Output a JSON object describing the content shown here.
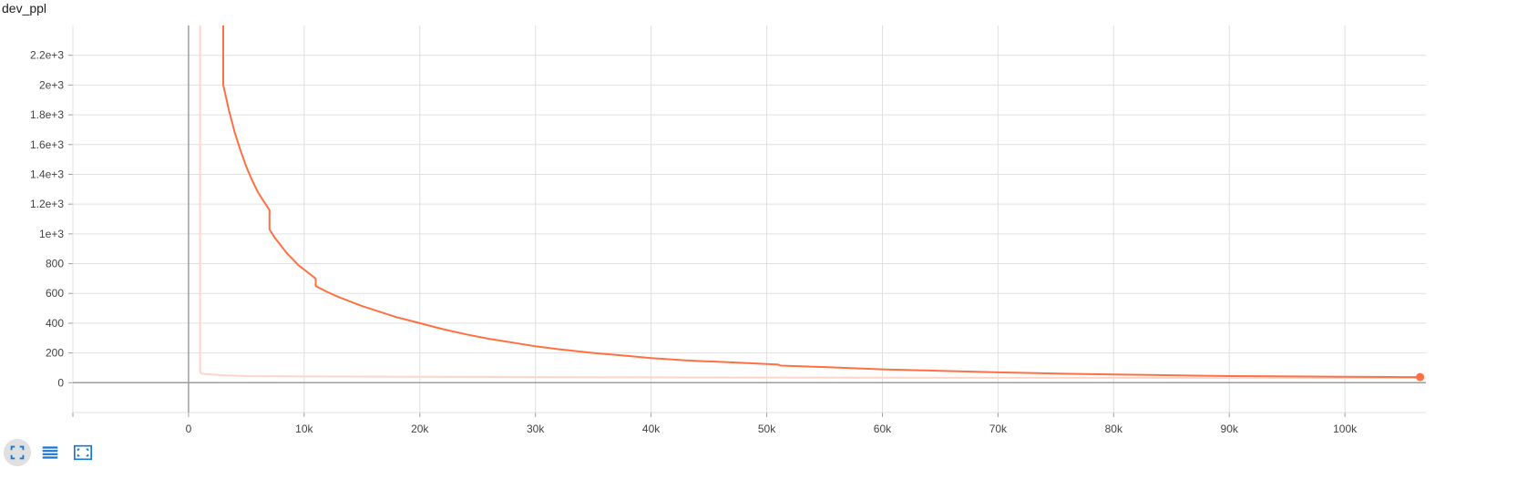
{
  "title": "dev_ppl",
  "toolbar": {
    "fullscreen_icon": "fullscreen-icon",
    "data_icon": "list-icon",
    "fit_icon": "fit-domain-icon"
  },
  "colors": {
    "main": "#ff7043",
    "ghost": "#ffd5c9",
    "grid": "#e0e0e0",
    "axis": "#9e9e9e",
    "tick_text": "#424242"
  },
  "chart_data": {
    "type": "line",
    "title": "dev_ppl",
    "xlabel": "",
    "ylabel": "",
    "xlim": [
      -10000,
      107000
    ],
    "ylim": [
      -200,
      2400
    ],
    "x_ticks": [
      0,
      10000,
      20000,
      30000,
      40000,
      50000,
      60000,
      70000,
      80000,
      90000,
      100000
    ],
    "x_tick_labels": [
      "0",
      "10k",
      "20k",
      "30k",
      "40k",
      "50k",
      "60k",
      "70k",
      "80k",
      "90k",
      "100k"
    ],
    "y_ticks": [
      0,
      200,
      400,
      600,
      800,
      1000,
      1200,
      1400,
      1600,
      1800,
      2000,
      2200
    ],
    "y_tick_labels": [
      "0",
      "200",
      "400",
      "600",
      "800",
      "1e+3",
      "1.2e+3",
      "1.4e+3",
      "1.6e+3",
      "1.8e+3",
      "2e+3",
      "2.2e+3"
    ],
    "grid": true,
    "series": [
      {
        "role": "smoothed",
        "x": [
          3000,
          3000,
          3500,
          4000,
          4500,
          5000,
          5500,
          6000,
          6500,
          7000,
          7000,
          7500,
          8000,
          8500,
          9000,
          9500,
          10000,
          10500,
          11000,
          11000,
          12000,
          13000,
          14000,
          15000,
          16000,
          17000,
          18000,
          20000,
          22000,
          24000,
          26000,
          28000,
          30000,
          32000,
          35000,
          38000,
          40000,
          43000,
          46000,
          49000,
          51000,
          51200,
          55000,
          60000,
          65000,
          70000,
          75000,
          80000,
          85000,
          90000,
          95000,
          100000,
          105000,
          106500
        ],
        "y": [
          2400,
          2000,
          1830,
          1680,
          1560,
          1450,
          1360,
          1280,
          1220,
          1160,
          1030,
          970,
          920,
          870,
          830,
          790,
          760,
          730,
          700,
          650,
          610,
          575,
          545,
          515,
          490,
          465,
          440,
          400,
          360,
          325,
          295,
          270,
          245,
          225,
          200,
          180,
          165,
          150,
          140,
          130,
          122,
          115,
          105,
          90,
          80,
          70,
          62,
          56,
          50,
          45,
          42,
          40,
          38,
          38
        ]
      },
      {
        "role": "raw",
        "x": [
          1000,
          1000,
          1200,
          3000,
          5000,
          10000,
          20000,
          30000,
          40000,
          50000,
          60000,
          70000,
          80000,
          90000,
          100000,
          106500
        ],
        "y": [
          2400,
          70,
          60,
          50,
          45,
          42,
          40,
          38,
          36,
          35,
          34,
          33,
          33,
          32,
          32,
          32
        ]
      }
    ],
    "last_point": {
      "x": 106500,
      "y": 38
    }
  }
}
